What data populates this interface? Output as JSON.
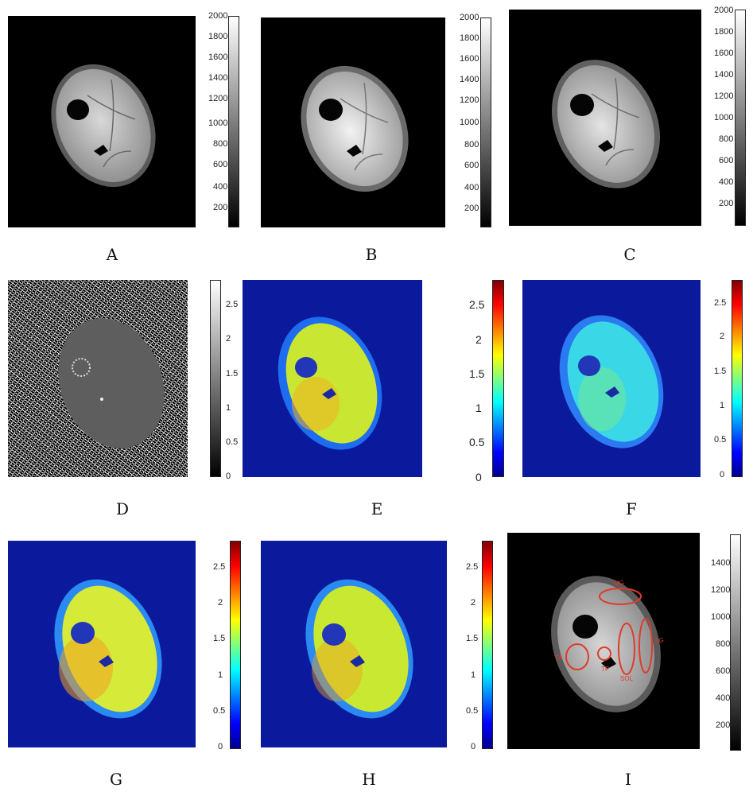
{
  "panels": [
    {
      "letter": "A",
      "colormap": "gray",
      "ticks": [
        "2000",
        "1800",
        "1600",
        "1400",
        "1200",
        "1000",
        "800",
        "600",
        "400",
        "200"
      ]
    },
    {
      "letter": "B",
      "colormap": "gray",
      "ticks": [
        "2000",
        "1800",
        "1600",
        "1400",
        "1200",
        "1000",
        "800",
        "600",
        "400",
        "200"
      ]
    },
    {
      "letter": "C",
      "colormap": "gray",
      "ticks": [
        "2000",
        "1800",
        "1600",
        "1400",
        "1200",
        "1000",
        "800",
        "600",
        "400",
        "200"
      ]
    },
    {
      "letter": "D",
      "colormap": "gray",
      "ticks": [
        "2.5",
        "2",
        "1.5",
        "1",
        "0.5",
        "0"
      ]
    },
    {
      "letter": "E",
      "colormap": "jet",
      "ticks": []
    },
    {
      "letter": "F",
      "colormap": "jet",
      "ticks": [
        "2.5",
        "2",
        "1.5",
        "1",
        "0.5",
        "0"
      ],
      "ticks_right": [
        "2.5",
        "2",
        "1.5",
        "1",
        "0.5",
        "0"
      ]
    },
    {
      "letter": "G",
      "colormap": "jet",
      "ticks": [
        "2.5",
        "2",
        "1.5",
        "1",
        "0.5",
        "0"
      ]
    },
    {
      "letter": "H",
      "colormap": "jet",
      "ticks": [
        "2.5",
        "2",
        "1.5",
        "1",
        "0.5",
        "0"
      ]
    },
    {
      "letter": "I",
      "colormap": "gray",
      "ticks": [
        "1400",
        "1200",
        "1000",
        "800",
        "600",
        "400",
        "200"
      ],
      "roi_labels": [
        "MG",
        "LG",
        "SOL",
        "TA",
        "TP"
      ]
    }
  ],
  "colors": {
    "roi": "#e03a2a",
    "jet_background": "#0b1a9c"
  }
}
